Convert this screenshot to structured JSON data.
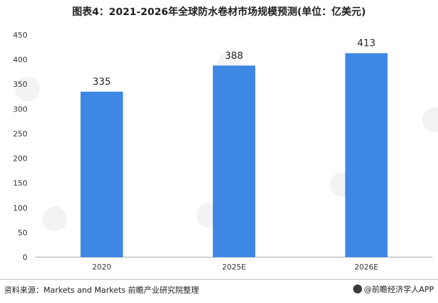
{
  "chart_data": {
    "type": "bar",
    "title": "图表4：2021-2026年全球防水卷材市场规模预测(单位：亿美元)",
    "categories": [
      "2020",
      "2025E",
      "2026E"
    ],
    "values": [
      335,
      388,
      413
    ],
    "data_labels": [
      "335",
      "388",
      "413"
    ],
    "ylim": [
      0,
      450
    ],
    "yticks": [
      0,
      50,
      100,
      150,
      200,
      250,
      300,
      350,
      400,
      450
    ],
    "xlabel": "",
    "ylabel": "",
    "grid": false,
    "legend": "none",
    "bar_color": "#3f87e5"
  },
  "footer": {
    "source": "资料来源：Markets and Markets 前瞻产业研究院整理",
    "attribution": "@前瞻经济学人APP"
  }
}
